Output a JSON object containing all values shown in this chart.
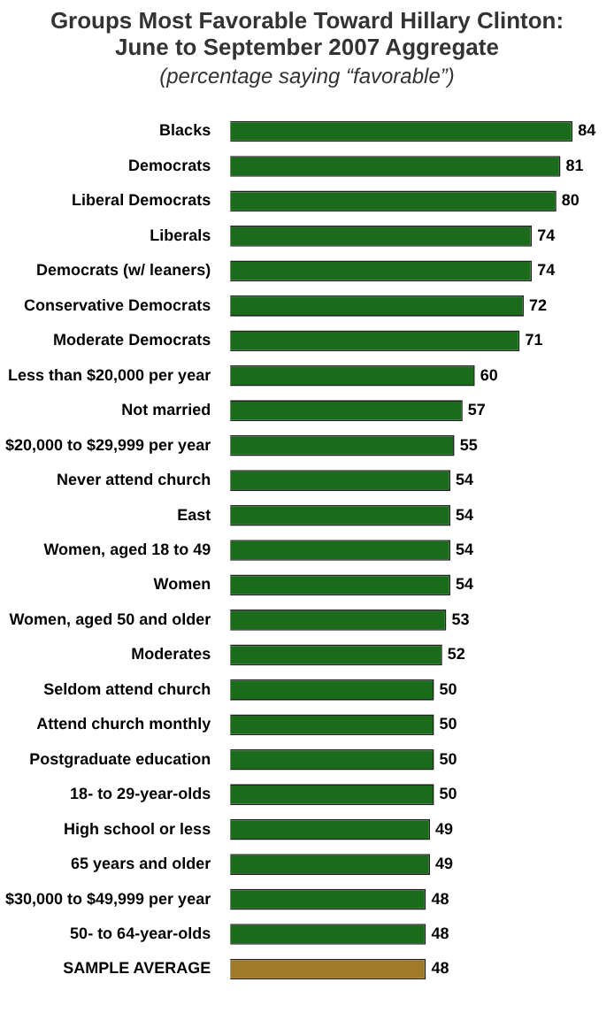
{
  "chart_data": {
    "type": "bar",
    "orientation": "horizontal",
    "title": "Groups Most Favorable Toward Hillary Clinton:\nJune to September 2007 Aggregate",
    "subtitle": "(percentage saying “favorable”)",
    "categories": [
      "Blacks",
      "Democrats",
      "Liberal Democrats",
      "Liberals",
      "Democrats (w/ leaners)",
      "Conservative Democrats",
      "Moderate Democrats",
      "Less than $20,000 per year",
      "Not married",
      "$20,000 to $29,999 per year",
      "Never attend church",
      "East",
      "Women, aged 18 to 49",
      "Women",
      "Women, aged 50 and older",
      "Moderates",
      "Seldom attend church",
      "Attend church monthly",
      "Postgraduate education",
      "18- to 29-year-olds",
      "High school or less",
      "65 years and older",
      "$30,000 to $49,999 per year",
      "50- to 64-year-olds",
      "SAMPLE AVERAGE"
    ],
    "values": [
      84,
      81,
      80,
      74,
      74,
      72,
      71,
      60,
      57,
      55,
      54,
      54,
      54,
      54,
      53,
      52,
      50,
      50,
      50,
      50,
      49,
      49,
      48,
      48,
      48
    ],
    "colors": [
      "#1a6b1a",
      "#1a6b1a",
      "#1a6b1a",
      "#1a6b1a",
      "#1a6b1a",
      "#1a6b1a",
      "#1a6b1a",
      "#1a6b1a",
      "#1a6b1a",
      "#1a6b1a",
      "#1a6b1a",
      "#1a6b1a",
      "#1a6b1a",
      "#1a6b1a",
      "#1a6b1a",
      "#1a6b1a",
      "#1a6b1a",
      "#1a6b1a",
      "#1a6b1a",
      "#1a6b1a",
      "#1a6b1a",
      "#1a6b1a",
      "#1a6b1a",
      "#1a6b1a",
      "#a07a2a"
    ],
    "data_labels": true,
    "legend": false
  }
}
